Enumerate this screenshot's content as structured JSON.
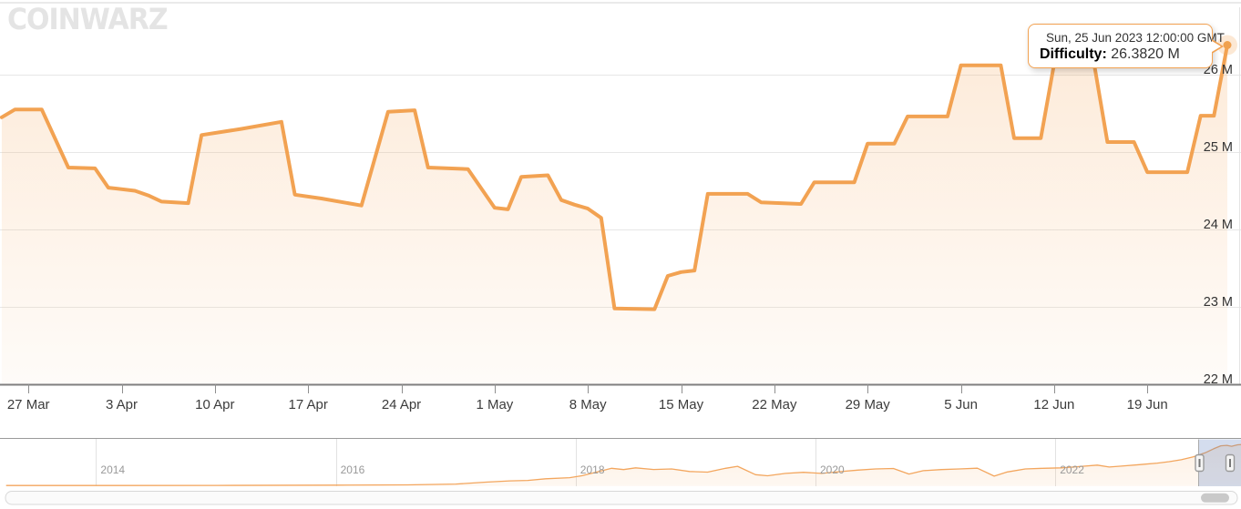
{
  "brand": {
    "logo_text": "CoinWarz"
  },
  "tooltip": {
    "date_line": "Sun, 25 Jun 2023 12:00:00 GMT",
    "label": "Difficulty:",
    "value": "26.3820 M"
  },
  "colors": {
    "accent": "#f2a252",
    "area_fill_top": "rgba(244,162,82,0.22)",
    "area_fill_bottom": "rgba(244,162,82,0.04)",
    "navigator_mask": "rgba(102,133,194,0.28)"
  },
  "chart_data": {
    "type": "area",
    "series_name": "Difficulty",
    "legend": "off",
    "grid": "horizontal",
    "main": {
      "xtick_labels": [
        "27 Mar",
        "3 Apr",
        "10 Apr",
        "17 Apr",
        "24 Apr",
        "1 May",
        "8 May",
        "15 May",
        "22 May",
        "29 May",
        "5 Jun",
        "12 Jun",
        "19 Jun"
      ],
      "xtick_dates": [
        "2023-03-27",
        "2023-04-03",
        "2023-04-10",
        "2023-04-17",
        "2023-04-24",
        "2023-05-01",
        "2023-05-08",
        "2023-05-15",
        "2023-05-22",
        "2023-05-29",
        "2023-06-05",
        "2023-06-12",
        "2023-06-19"
      ],
      "ytick_labels": [
        "22 M",
        "23 M",
        "24 M",
        "25 M",
        "26 M"
      ],
      "ytick_values": [
        22,
        23,
        24,
        25,
        26
      ],
      "ylim": [
        22,
        26.6
      ],
      "unit": "M",
      "points": [
        [
          "2023-03-25",
          25.45
        ],
        [
          "2023-03-26",
          25.55
        ],
        [
          "2023-03-28",
          25.55
        ],
        [
          "2023-03-30",
          24.8
        ],
        [
          "2023-04-01",
          24.79
        ],
        [
          "2023-04-02",
          24.54
        ],
        [
          "2023-04-04",
          24.5
        ],
        [
          "2023-04-05",
          24.44
        ],
        [
          "2023-04-06",
          24.36
        ],
        [
          "2023-04-08",
          24.34
        ],
        [
          "2023-04-09",
          25.22
        ],
        [
          "2023-04-12",
          25.3
        ],
        [
          "2023-04-15",
          25.39
        ],
        [
          "2023-04-16",
          24.45
        ],
        [
          "2023-04-18",
          24.4
        ],
        [
          "2023-04-21",
          24.31
        ],
        [
          "2023-04-23",
          25.52
        ],
        [
          "2023-04-25",
          25.54
        ],
        [
          "2023-04-26",
          24.8
        ],
        [
          "2023-04-29",
          24.78
        ],
        [
          "2023-05-01",
          24.28
        ],
        [
          "2023-05-02",
          24.26
        ],
        [
          "2023-05-03",
          24.68
        ],
        [
          "2023-05-05",
          24.7
        ],
        [
          "2023-05-06",
          24.38
        ],
        [
          "2023-05-07",
          24.32
        ],
        [
          "2023-05-08",
          24.27
        ],
        [
          "2023-05-09",
          24.15
        ],
        [
          "2023-05-10",
          22.98
        ],
        [
          "2023-05-13",
          22.97
        ],
        [
          "2023-05-14",
          23.4
        ],
        [
          "2023-05-15",
          23.45
        ],
        [
          "2023-05-16",
          23.47
        ],
        [
          "2023-05-17",
          24.46
        ],
        [
          "2023-05-20",
          24.46
        ],
        [
          "2023-05-21",
          24.35
        ],
        [
          "2023-05-24",
          24.33
        ],
        [
          "2023-05-25",
          24.61
        ],
        [
          "2023-05-28",
          24.61
        ],
        [
          "2023-05-29",
          25.11
        ],
        [
          "2023-05-31",
          25.11
        ],
        [
          "2023-06-01",
          25.46
        ],
        [
          "2023-06-04",
          25.46
        ],
        [
          "2023-06-05",
          26.12
        ],
        [
          "2023-06-08",
          26.12
        ],
        [
          "2023-06-09",
          25.18
        ],
        [
          "2023-06-11",
          25.18
        ],
        [
          "2023-06-12",
          26.14
        ],
        [
          "2023-06-15",
          26.14
        ],
        [
          "2023-06-16",
          25.13
        ],
        [
          "2023-06-18",
          25.13
        ],
        [
          "2023-06-19",
          24.74
        ],
        [
          "2023-06-22",
          24.74
        ],
        [
          "2023-06-23",
          25.47
        ],
        [
          "2023-06-24",
          25.47
        ],
        [
          "2023-06-25",
          26.382
        ]
      ],
      "hover_point": {
        "date": "2023-06-25",
        "value_m": 26.382
      }
    },
    "navigator": {
      "year_labels": [
        "2014",
        "2016",
        "2018",
        "2020",
        "2022"
      ],
      "year_values": [
        2014,
        2016,
        2018,
        2020,
        2022
      ],
      "value_range_m": [
        0,
        26.4
      ],
      "points": [
        [
          2013.25,
          0.15
        ],
        [
          2014,
          0.2
        ],
        [
          2015,
          0.25
        ],
        [
          2016,
          0.4
        ],
        [
          2016.6,
          0.6
        ],
        [
          2017.0,
          1.1
        ],
        [
          2017.25,
          2.3
        ],
        [
          2017.45,
          3.1
        ],
        [
          2017.6,
          3.4
        ],
        [
          2017.75,
          4.4
        ],
        [
          2017.95,
          5.1
        ],
        [
          2018.05,
          6.3
        ],
        [
          2018.15,
          8.2
        ],
        [
          2018.3,
          11.0
        ],
        [
          2018.4,
          10.2
        ],
        [
          2018.5,
          11.3
        ],
        [
          2018.65,
          10.3
        ],
        [
          2018.8,
          10.6
        ],
        [
          2018.95,
          9.0
        ],
        [
          2019.1,
          8.6
        ],
        [
          2019.25,
          11.0
        ],
        [
          2019.35,
          12.3
        ],
        [
          2019.5,
          7.0
        ],
        [
          2019.6,
          6.3
        ],
        [
          2019.75,
          7.8
        ],
        [
          2019.9,
          8.5
        ],
        [
          2020.05,
          7.8
        ],
        [
          2020.2,
          8.9
        ],
        [
          2020.35,
          9.9
        ],
        [
          2020.5,
          10.6
        ],
        [
          2020.65,
          10.9
        ],
        [
          2020.78,
          7.4
        ],
        [
          2020.9,
          9.5
        ],
        [
          2021.05,
          10.2
        ],
        [
          2021.2,
          10.6
        ],
        [
          2021.35,
          11.1
        ],
        [
          2021.49,
          6.1
        ],
        [
          2021.6,
          8.7
        ],
        [
          2021.75,
          10.6
        ],
        [
          2021.9,
          11.0
        ],
        [
          2022.05,
          11.3
        ],
        [
          2022.2,
          12.1
        ],
        [
          2022.35,
          13.0
        ],
        [
          2022.45,
          11.8
        ],
        [
          2022.55,
          12.4
        ],
        [
          2022.7,
          13.3
        ],
        [
          2022.85,
          14.3
        ],
        [
          2022.95,
          15.2
        ],
        [
          2023.05,
          16.4
        ],
        [
          2023.15,
          18.2
        ],
        [
          2023.25,
          20.8
        ],
        [
          2023.32,
          23.3
        ],
        [
          2023.38,
          25.2
        ],
        [
          2023.43,
          25.5
        ],
        [
          2023.47,
          24.9
        ],
        [
          2023.52,
          25.8
        ],
        [
          2023.55,
          26.0
        ]
      ]
    }
  }
}
